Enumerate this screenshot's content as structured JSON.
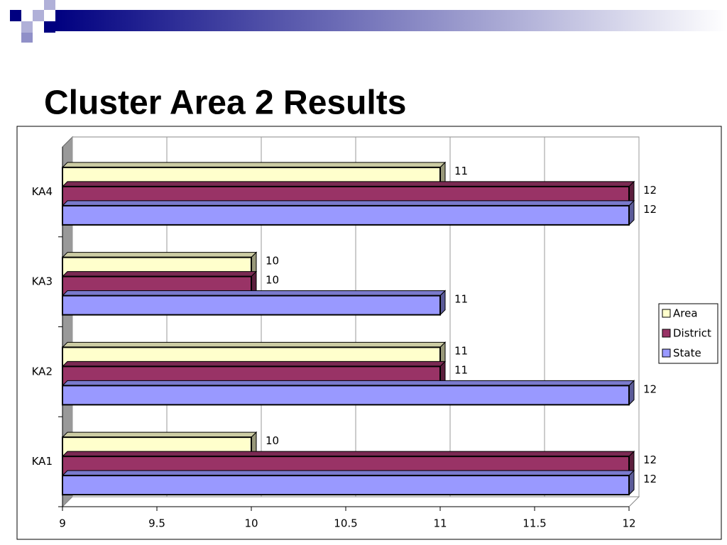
{
  "chart_data": {
    "type": "bar",
    "orientation": "horizontal",
    "title": "Cluster Area 2 Results",
    "categories": [
      "KA1",
      "KA2",
      "KA3",
      "KA4"
    ],
    "series": [
      {
        "name": "Area",
        "color": "#ffffcc",
        "values": [
          10,
          11,
          10,
          11
        ]
      },
      {
        "name": "District",
        "color": "#993366",
        "values": [
          12,
          11,
          10,
          12
        ]
      },
      {
        "name": "State",
        "color": "#9999ff",
        "values": [
          12,
          12,
          11,
          12
        ]
      }
    ],
    "xlim": [
      9,
      12
    ],
    "xticks": [
      9,
      9.5,
      10,
      10.5,
      11,
      11.5,
      12
    ],
    "grid": true,
    "legend": "right"
  }
}
